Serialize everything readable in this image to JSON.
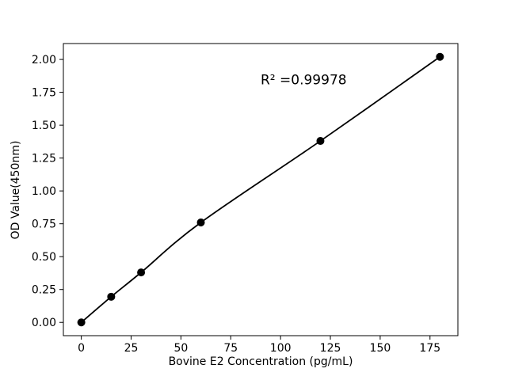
{
  "figure": {
    "background": "#ffffff"
  },
  "chart_data": {
    "type": "scatter",
    "title": "",
    "xlabel": "Bovine E2 Concentration (pg/mL)",
    "ylabel": "OD Value(450nm)",
    "annotation": "R² =0.99978",
    "x": [
      0,
      15,
      30,
      60,
      120,
      180
    ],
    "y": [
      0.0,
      0.195,
      0.38,
      0.76,
      1.38,
      2.02
    ],
    "xlim": [
      -9,
      189
    ],
    "ylim": [
      -0.101,
      2.121
    ],
    "xticks": [
      0,
      25,
      50,
      75,
      100,
      125,
      150,
      175
    ],
    "yticks": [
      0.0,
      0.25,
      0.5,
      0.75,
      1.0,
      1.25,
      1.5,
      1.75,
      2.0
    ],
    "grid": false,
    "legend_position": "none",
    "marker_color": "#000000",
    "line_color": "#000000",
    "annotation_position": {
      "x": 90,
      "y": 1.81
    }
  }
}
